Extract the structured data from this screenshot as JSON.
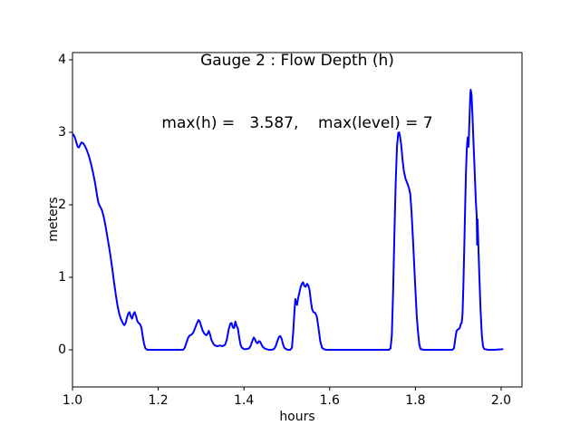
{
  "figure": {
    "background": "#ffffff",
    "axis_color": "#000000"
  },
  "chart_data": {
    "type": "line",
    "title": "Gauge 2 : Flow Depth (h)",
    "subtitle": "max(h) =   3.587,    max(level) = 7",
    "xlabel": "hours",
    "ylabel": "meters",
    "xlim": [
      1.0,
      2.0487
    ],
    "ylim": [
      -0.5125,
      4.1
    ],
    "xticks": [
      1.0,
      1.2,
      1.4,
      1.6,
      1.8,
      2.0
    ],
    "xtick_labels": [
      "1.0",
      "1.2",
      "1.4",
      "1.6",
      "1.8",
      "2.0"
    ],
    "yticks": [
      0,
      1,
      2,
      3,
      4
    ],
    "ytick_labels": [
      "0",
      "1",
      "2",
      "3",
      "4"
    ],
    "grid": false,
    "legend": null,
    "max_h": 3.587,
    "max_level": 7,
    "series": [
      {
        "name": "Flow Depth (h)",
        "color": "#0000ff",
        "points": [
          [
            1.0,
            2.98
          ],
          [
            1.003,
            2.96
          ],
          [
            1.006,
            2.92
          ],
          [
            1.009,
            2.86
          ],
          [
            1.012,
            2.8
          ],
          [
            1.015,
            2.79
          ],
          [
            1.018,
            2.83
          ],
          [
            1.021,
            2.86
          ],
          [
            1.025,
            2.85
          ],
          [
            1.029,
            2.81
          ],
          [
            1.033,
            2.76
          ],
          [
            1.038,
            2.68
          ],
          [
            1.043,
            2.57
          ],
          [
            1.048,
            2.44
          ],
          [
            1.053,
            2.29
          ],
          [
            1.057,
            2.14
          ],
          [
            1.06,
            2.04
          ],
          [
            1.063,
            1.99
          ],
          [
            1.066,
            1.96
          ],
          [
            1.069,
            1.92
          ],
          [
            1.073,
            1.83
          ],
          [
            1.077,
            1.71
          ],
          [
            1.081,
            1.57
          ],
          [
            1.085,
            1.43
          ],
          [
            1.089,
            1.28
          ],
          [
            1.093,
            1.11
          ],
          [
            1.097,
            0.93
          ],
          [
            1.101,
            0.76
          ],
          [
            1.105,
            0.61
          ],
          [
            1.109,
            0.5
          ],
          [
            1.112,
            0.44
          ],
          [
            1.115,
            0.4
          ],
          [
            1.118,
            0.36
          ],
          [
            1.121,
            0.34
          ],
          [
            1.124,
            0.37
          ],
          [
            1.127,
            0.44
          ],
          [
            1.13,
            0.5
          ],
          [
            1.133,
            0.52
          ],
          [
            1.136,
            0.46
          ],
          [
            1.139,
            0.43
          ],
          [
            1.142,
            0.49
          ],
          [
            1.145,
            0.52
          ],
          [
            1.148,
            0.47
          ],
          [
            1.151,
            0.4
          ],
          [
            1.154,
            0.37
          ],
          [
            1.158,
            0.35
          ],
          [
            1.161,
            0.3
          ],
          [
            1.164,
            0.18
          ],
          [
            1.167,
            0.08
          ],
          [
            1.17,
            0.02
          ],
          [
            1.175,
            0.0
          ],
          [
            1.21,
            0.0
          ],
          [
            1.258,
            0.0
          ],
          [
            1.262,
            0.03
          ],
          [
            1.266,
            0.1
          ],
          [
            1.27,
            0.17
          ],
          [
            1.274,
            0.2
          ],
          [
            1.278,
            0.21
          ],
          [
            1.282,
            0.24
          ],
          [
            1.286,
            0.3
          ],
          [
            1.29,
            0.36
          ],
          [
            1.294,
            0.41
          ],
          [
            1.297,
            0.39
          ],
          [
            1.3,
            0.33
          ],
          [
            1.304,
            0.26
          ],
          [
            1.308,
            0.22
          ],
          [
            1.312,
            0.2
          ],
          [
            1.315,
            0.22
          ],
          [
            1.318,
            0.26
          ],
          [
            1.321,
            0.21
          ],
          [
            1.324,
            0.14
          ],
          [
            1.328,
            0.09
          ],
          [
            1.332,
            0.06
          ],
          [
            1.338,
            0.05
          ],
          [
            1.344,
            0.06
          ],
          [
            1.35,
            0.05
          ],
          [
            1.356,
            0.07
          ],
          [
            1.36,
            0.14
          ],
          [
            1.364,
            0.27
          ],
          [
            1.368,
            0.36
          ],
          [
            1.371,
            0.37
          ],
          [
            1.374,
            0.31
          ],
          [
            1.377,
            0.3
          ],
          [
            1.38,
            0.39
          ],
          [
            1.383,
            0.33
          ],
          [
            1.386,
            0.29
          ],
          [
            1.389,
            0.17
          ],
          [
            1.392,
            0.07
          ],
          [
            1.395,
            0.03
          ],
          [
            1.4,
            0.01
          ],
          [
            1.406,
            0.01
          ],
          [
            1.412,
            0.02
          ],
          [
            1.416,
            0.06
          ],
          [
            1.42,
            0.13
          ],
          [
            1.423,
            0.17
          ],
          [
            1.426,
            0.14
          ],
          [
            1.429,
            0.1
          ],
          [
            1.432,
            0.09
          ],
          [
            1.435,
            0.12
          ],
          [
            1.438,
            0.11
          ],
          [
            1.441,
            0.07
          ],
          [
            1.444,
            0.04
          ],
          [
            1.448,
            0.02
          ],
          [
            1.452,
            0.01
          ],
          [
            1.458,
            0.0
          ],
          [
            1.464,
            0.0
          ],
          [
            1.47,
            0.01
          ],
          [
            1.474,
            0.05
          ],
          [
            1.478,
            0.12
          ],
          [
            1.482,
            0.18
          ],
          [
            1.485,
            0.19
          ],
          [
            1.488,
            0.15
          ],
          [
            1.491,
            0.08
          ],
          [
            1.494,
            0.03
          ],
          [
            1.498,
            0.01
          ],
          [
            1.503,
            0.0
          ],
          [
            1.508,
            0.0
          ],
          [
            1.512,
            0.03
          ],
          [
            1.515,
            0.25
          ],
          [
            1.518,
            0.55
          ],
          [
            1.52,
            0.7
          ],
          [
            1.522,
            0.64
          ],
          [
            1.524,
            0.62
          ],
          [
            1.526,
            0.7
          ],
          [
            1.529,
            0.78
          ],
          [
            1.532,
            0.86
          ],
          [
            1.535,
            0.91
          ],
          [
            1.538,
            0.93
          ],
          [
            1.541,
            0.88
          ],
          [
            1.544,
            0.87
          ],
          [
            1.547,
            0.91
          ],
          [
            1.55,
            0.89
          ],
          [
            1.553,
            0.83
          ],
          [
            1.556,
            0.68
          ],
          [
            1.559,
            0.56
          ],
          [
            1.562,
            0.52
          ],
          [
            1.566,
            0.51
          ],
          [
            1.57,
            0.46
          ],
          [
            1.574,
            0.3
          ],
          [
            1.578,
            0.12
          ],
          [
            1.582,
            0.03
          ],
          [
            1.586,
            0.01
          ],
          [
            1.592,
            0.0
          ],
          [
            1.65,
            0.0
          ],
          [
            1.7,
            0.0
          ],
          [
            1.738,
            0.0
          ],
          [
            1.742,
            0.02
          ],
          [
            1.745,
            0.2
          ],
          [
            1.748,
            0.8
          ],
          [
            1.751,
            1.6
          ],
          [
            1.754,
            2.3
          ],
          [
            1.757,
            2.8
          ],
          [
            1.76,
            2.99
          ],
          [
            1.762,
            3.0
          ],
          [
            1.764,
            2.95
          ],
          [
            1.767,
            2.82
          ],
          [
            1.77,
            2.62
          ],
          [
            1.773,
            2.47
          ],
          [
            1.777,
            2.36
          ],
          [
            1.781,
            2.3
          ],
          [
            1.785,
            2.23
          ],
          [
            1.788,
            2.15
          ],
          [
            1.791,
            1.9
          ],
          [
            1.795,
            1.45
          ],
          [
            1.799,
            0.95
          ],
          [
            1.803,
            0.48
          ],
          [
            1.806,
            0.25
          ],
          [
            1.809,
            0.08
          ],
          [
            1.812,
            0.01
          ],
          [
            1.82,
            0.0
          ],
          [
            1.855,
            0.0
          ],
          [
            1.886,
            0.0
          ],
          [
            1.89,
            0.02
          ],
          [
            1.893,
            0.15
          ],
          [
            1.896,
            0.26
          ],
          [
            1.899,
            0.28
          ],
          [
            1.902,
            0.29
          ],
          [
            1.904,
            0.31
          ],
          [
            1.906,
            0.36
          ],
          [
            1.908,
            0.37
          ],
          [
            1.91,
            0.5
          ],
          [
            1.912,
            0.9
          ],
          [
            1.914,
            1.4
          ],
          [
            1.916,
            1.95
          ],
          [
            1.918,
            2.45
          ],
          [
            1.92,
            2.78
          ],
          [
            1.922,
            2.93
          ],
          [
            1.924,
            2.8
          ],
          [
            1.926,
            3.15
          ],
          [
            1.928,
            3.5
          ],
          [
            1.929,
            3.587
          ],
          [
            1.931,
            3.52
          ],
          [
            1.933,
            3.25
          ],
          [
            1.935,
            2.95
          ],
          [
            1.937,
            2.65
          ],
          [
            1.939,
            2.35
          ],
          [
            1.941,
            2.05
          ],
          [
            1.943,
            1.85
          ],
          [
            1.944,
            1.45
          ],
          [
            1.945,
            1.8
          ],
          [
            1.947,
            1.42
          ],
          [
            1.949,
            1.05
          ],
          [
            1.952,
            0.55
          ],
          [
            1.955,
            0.2
          ],
          [
            1.958,
            0.04
          ],
          [
            1.961,
            0.01
          ],
          [
            1.97,
            0.0
          ],
          [
            1.985,
            0.0
          ],
          [
            2.005,
            0.01
          ]
        ]
      }
    ]
  }
}
